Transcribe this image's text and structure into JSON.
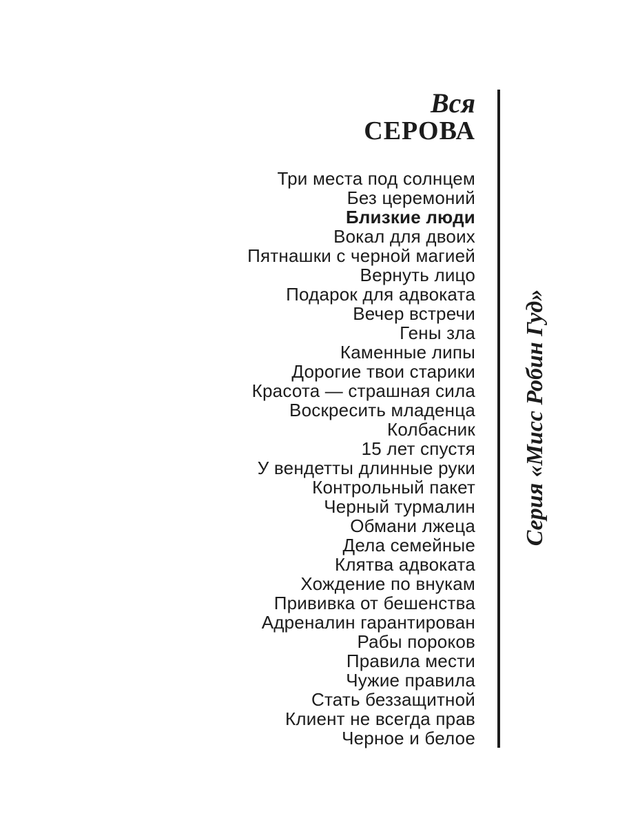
{
  "page": {
    "background": "#ffffff",
    "ink": "#1c1c1c"
  },
  "header": {
    "author_prefix": "Вся",
    "author_name": "СЕРОВА"
  },
  "book_list": {
    "titles": [
      {
        "text": "Три места под солнцем",
        "bold": false
      },
      {
        "text": "Без церемоний",
        "bold": false
      },
      {
        "text": "Близкие люди",
        "bold": true
      },
      {
        "text": "Вокал для двоих",
        "bold": false
      },
      {
        "text": "Пятнашки с черной магией",
        "bold": false
      },
      {
        "text": "Вернуть лицо",
        "bold": false
      },
      {
        "text": "Подарок для адвоката",
        "bold": false
      },
      {
        "text": "Вечер встречи",
        "bold": false
      },
      {
        "text": "Гены зла",
        "bold": false
      },
      {
        "text": "Каменные липы",
        "bold": false
      },
      {
        "text": "Дорогие твои старики",
        "bold": false
      },
      {
        "text": "Красота — страшная сила",
        "bold": false
      },
      {
        "text": "Воскресить младенца",
        "bold": false
      },
      {
        "text": "Колбасник",
        "bold": false
      },
      {
        "text": "15 лет спустя",
        "bold": false
      },
      {
        "text": "У вендетты длинные руки",
        "bold": false
      },
      {
        "text": "Контрольный пакет",
        "bold": false
      },
      {
        "text": "Черный турмалин",
        "bold": false
      },
      {
        "text": "Обмани лжеца",
        "bold": false
      },
      {
        "text": "Дела семейные",
        "bold": false
      },
      {
        "text": "Клятва адвоката",
        "bold": false
      },
      {
        "text": "Хождение по внукам",
        "bold": false
      },
      {
        "text": "Прививка от бешенства",
        "bold": false
      },
      {
        "text": "Адреналин гарантирован",
        "bold": false
      },
      {
        "text": "Рабы пороков",
        "bold": false
      },
      {
        "text": "Правила мести",
        "bold": false
      },
      {
        "text": "Чужие правила",
        "bold": false
      },
      {
        "text": "Стать беззащитной",
        "bold": false
      },
      {
        "text": "Клиент не всегда прав",
        "bold": false
      },
      {
        "text": "Черное и белое",
        "bold": false
      }
    ]
  },
  "series_sidebar": {
    "label": "Серия «Мисс Робин Гуд»"
  }
}
